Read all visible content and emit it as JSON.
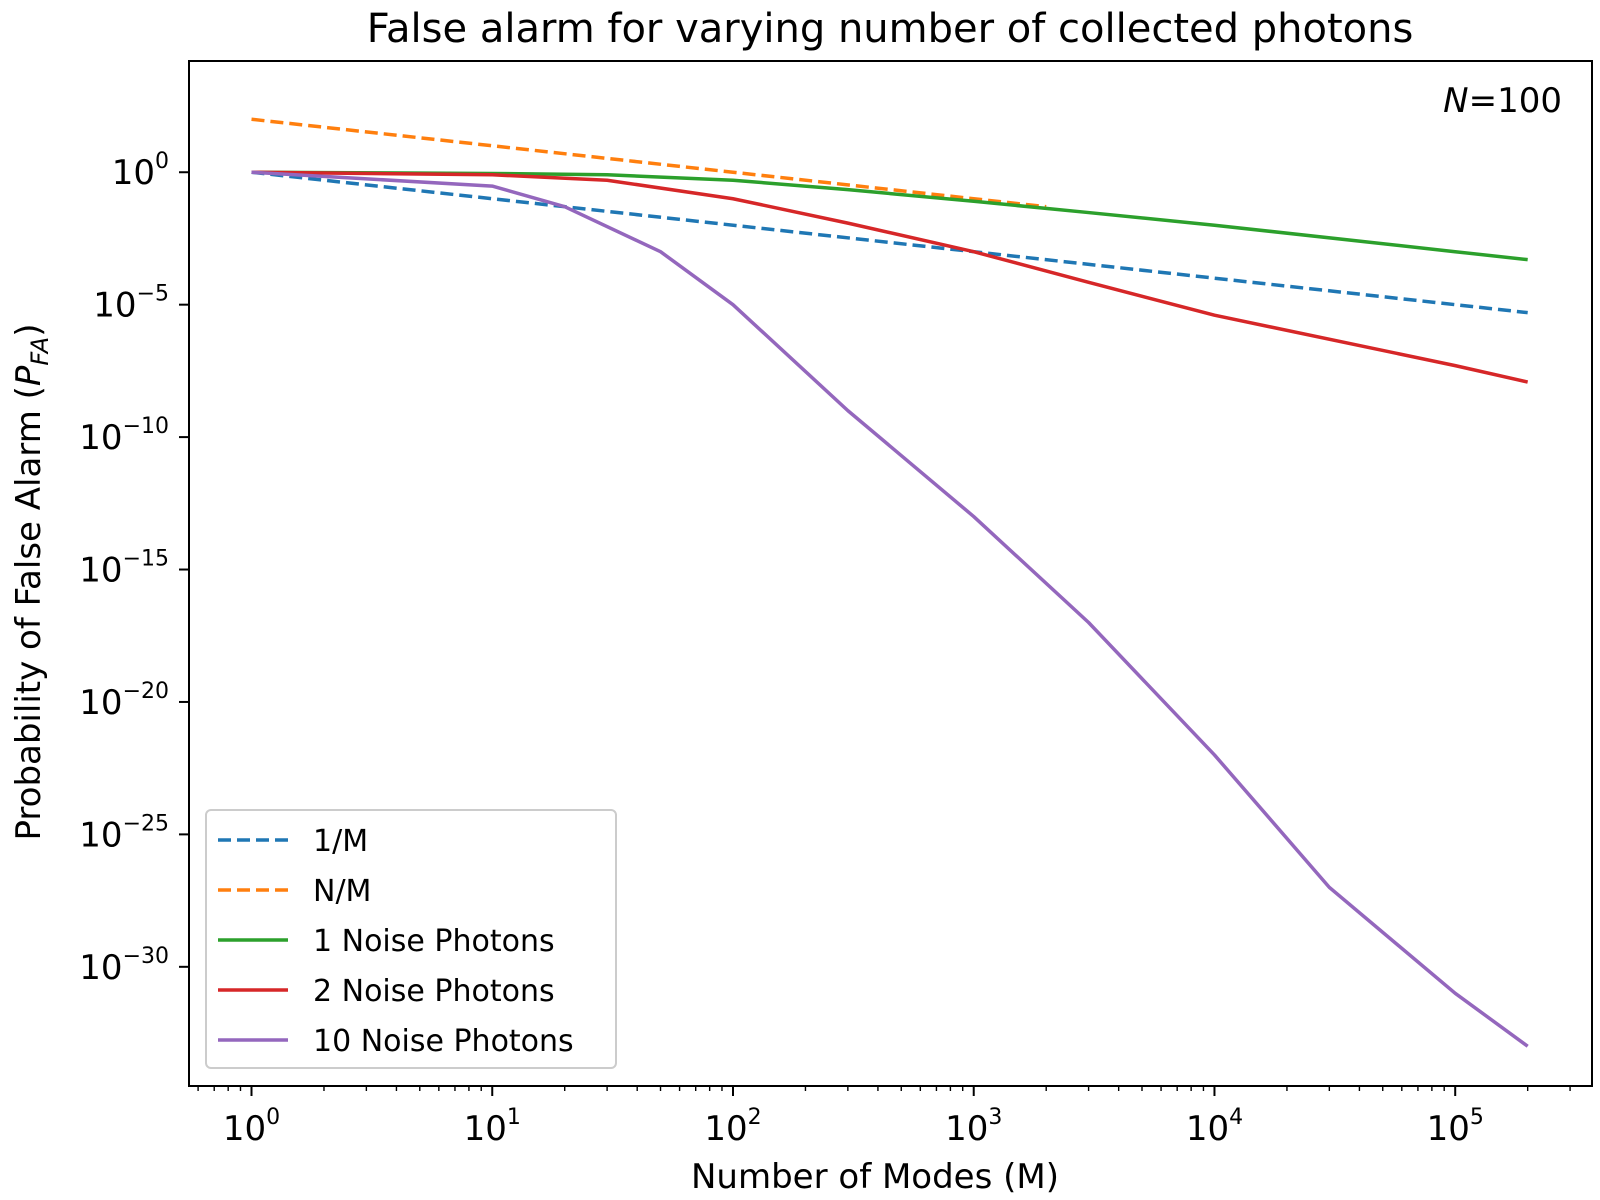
{
  "chart_data": {
    "type": "line",
    "title": "False alarm for varying number of collected photons",
    "xlabel": "Number of Modes (M)",
    "ylabel_main": "Probability of False Alarm (",
    "ylabel_symbol": "P",
    "ylabel_sub": "FA",
    "ylabel_end": ")",
    "xscale": "log",
    "yscale": "log",
    "xlim": [
      0.55,
      370000
    ],
    "ylim": [
      -34.5,
      4.2
    ],
    "grid": false,
    "legend_placement": "lower-left",
    "annotation": {
      "italic": "N",
      "rest": "=100"
    },
    "x_ticks": [
      {
        "base": "10",
        "exp": "0",
        "value": 1
      },
      {
        "base": "10",
        "exp": "1",
        "value": 10
      },
      {
        "base": "10",
        "exp": "2",
        "value": 100
      },
      {
        "base": "10",
        "exp": "3",
        "value": 1000
      },
      {
        "base": "10",
        "exp": "4",
        "value": 10000
      },
      {
        "base": "10",
        "exp": "5",
        "value": 100000
      }
    ],
    "y_ticks": [
      {
        "base": "10",
        "exp": "0",
        "value": 1
      },
      {
        "base": "10",
        "exp": "−5",
        "value": 1e-05
      },
      {
        "base": "10",
        "exp": "−10",
        "value": 1e-10
      },
      {
        "base": "10",
        "exp": "−15",
        "value": 1e-15
      },
      {
        "base": "10",
        "exp": "−20",
        "value": 1e-20
      },
      {
        "base": "10",
        "exp": "−25",
        "value": 1e-25
      },
      {
        "base": "10",
        "exp": "−30",
        "value": 1e-30
      }
    ],
    "series": [
      {
        "name": "1/M",
        "color": "#1f77b4",
        "dash": true,
        "x": [
          1,
          200000
        ],
        "y": [
          1,
          5e-06
        ]
      },
      {
        "name": "N/M",
        "color": "#ff7f0e",
        "dash": true,
        "x": [
          1,
          10,
          100,
          1000,
          2000
        ],
        "y": [
          100,
          10,
          1,
          0.1,
          0.05
        ]
      },
      {
        "name": "1 Noise Photons",
        "color": "#2ca02c",
        "dash": false,
        "x": [
          1,
          10,
          30,
          100,
          300,
          1000,
          3000,
          10000,
          100000,
          200000
        ],
        "y": [
          1,
          0.9,
          0.8,
          0.5,
          0.22,
          0.08,
          0.03,
          0.01,
          0.001,
          0.0005
        ]
      },
      {
        "name": "2 Noise Photons",
        "color": "#d62728",
        "dash": false,
        "x": [
          1,
          10,
          30,
          100,
          300,
          1000,
          3000,
          10000,
          100000,
          200000
        ],
        "y": [
          1,
          0.8,
          0.5,
          0.1,
          0.012,
          0.001,
          7e-05,
          4e-06,
          5e-08,
          1.2e-08
        ]
      },
      {
        "name": "10 Noise Photons",
        "color": "#9467bd",
        "dash": false,
        "x": [
          1,
          10,
          20,
          50,
          100,
          300,
          1000,
          3000,
          10000,
          30000,
          100000,
          200000
        ],
        "y": [
          1,
          0.3,
          0.05,
          0.001,
          1e-05,
          1e-09,
          1e-13,
          1e-17,
          1e-22,
          1e-27,
          1e-31,
          1e-33
        ]
      }
    ]
  }
}
